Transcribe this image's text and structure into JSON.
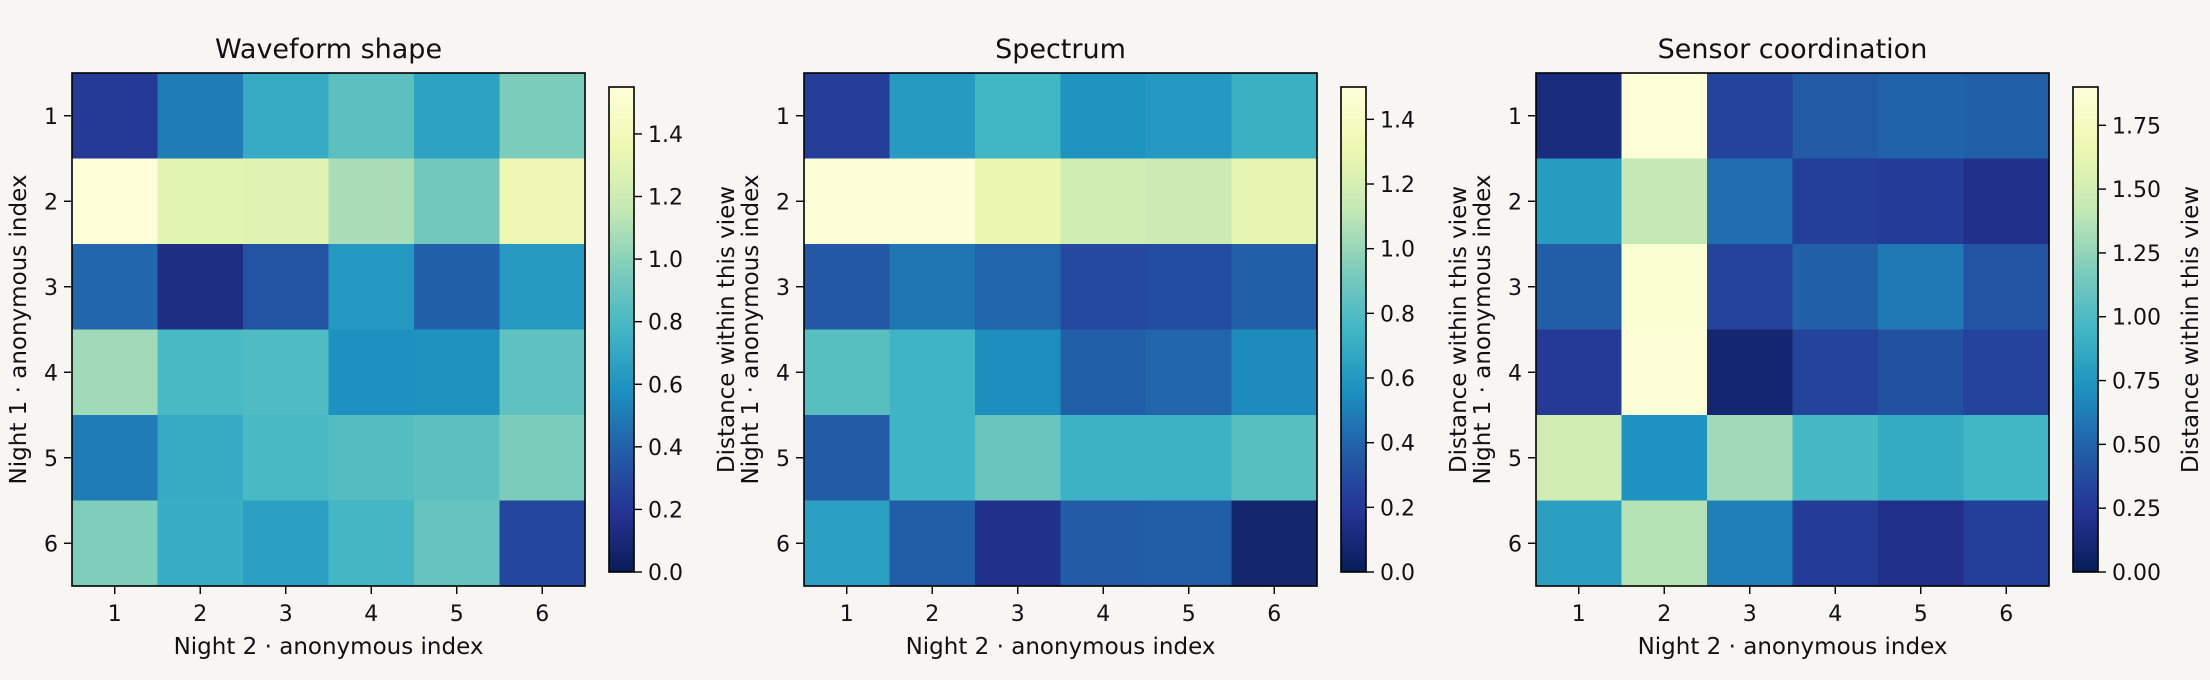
{
  "chart_data": [
    {
      "type": "heatmap",
      "title": "Waveform shape",
      "xlabel": "Night 2 · anonymous index",
      "ylabel": "Night 1 · anonymous index",
      "x_categories": [
        "1",
        "2",
        "3",
        "4",
        "5",
        "6"
      ],
      "y_categories": [
        "1",
        "2",
        "3",
        "4",
        "5",
        "6"
      ],
      "values": [
        [
          0.22,
          0.5,
          0.72,
          0.86,
          0.67,
          0.96
        ],
        [
          1.55,
          1.3,
          1.29,
          1.08,
          0.93,
          1.37
        ],
        [
          0.42,
          0.14,
          0.34,
          0.62,
          0.4,
          0.63
        ],
        [
          1.06,
          0.8,
          0.82,
          0.58,
          0.59,
          0.87
        ],
        [
          0.5,
          0.72,
          0.8,
          0.83,
          0.86,
          0.96
        ],
        [
          0.97,
          0.73,
          0.66,
          0.78,
          0.89,
          0.28
        ]
      ],
      "colorbar": {
        "label": "Distance within this view",
        "min": 0.0,
        "max": 1.55,
        "ticks": [
          "0.0",
          "0.2",
          "0.4",
          "0.6",
          "0.8",
          "1.0",
          "1.2",
          "1.4"
        ]
      }
    },
    {
      "type": "heatmap",
      "title": "Spectrum",
      "xlabel": "Night 2 · anonymous index",
      "ylabel": "Night 1 · anonymous index",
      "x_categories": [
        "1",
        "2",
        "3",
        "4",
        "5",
        "6"
      ],
      "y_categories": [
        "1",
        "2",
        "3",
        "4",
        "5",
        "6"
      ],
      "values": [
        [
          0.23,
          0.61,
          0.75,
          0.58,
          0.6,
          0.72
        ],
        [
          1.48,
          1.48,
          1.31,
          1.17,
          1.15,
          1.28
        ],
        [
          0.35,
          0.46,
          0.4,
          0.28,
          0.3,
          0.38
        ],
        [
          0.82,
          0.74,
          0.55,
          0.38,
          0.4,
          0.54
        ],
        [
          0.36,
          0.74,
          0.87,
          0.73,
          0.73,
          0.82
        ],
        [
          0.64,
          0.37,
          0.16,
          0.36,
          0.37,
          0.07
        ]
      ],
      "colorbar": {
        "label": "Distance within this view",
        "min": 0.0,
        "max": 1.5,
        "ticks": [
          "0.0",
          "0.2",
          "0.4",
          "0.6",
          "0.8",
          "1.0",
          "1.2",
          "1.4"
        ]
      }
    },
    {
      "type": "heatmap",
      "title": "Sensor coordination",
      "xlabel": "Night 2 · anonymous index",
      "ylabel": "Night 1 · anonymous index",
      "x_categories": [
        "1",
        "2",
        "3",
        "4",
        "5",
        "6"
      ],
      "y_categories": [
        "1",
        "2",
        "3",
        "4",
        "5",
        "6"
      ],
      "values": [
        [
          0.15,
          1.89,
          0.32,
          0.45,
          0.5,
          0.48
        ],
        [
          0.78,
          1.42,
          0.55,
          0.3,
          0.28,
          0.2
        ],
        [
          0.47,
          1.85,
          0.33,
          0.49,
          0.6,
          0.42
        ],
        [
          0.27,
          1.88,
          0.09,
          0.32,
          0.4,
          0.33
        ],
        [
          1.48,
          0.72,
          1.3,
          0.97,
          0.87,
          0.95
        ],
        [
          0.8,
          1.37,
          0.63,
          0.28,
          0.2,
          0.3
        ]
      ],
      "colorbar": {
        "label": "Distance within this view",
        "min": 0.0,
        "max": 1.9,
        "ticks": [
          "0.00",
          "0.25",
          "0.50",
          "0.75",
          "1.00",
          "1.25",
          "1.50",
          "1.75"
        ]
      }
    }
  ],
  "colormap": {
    "name": "YlGnBu",
    "stops": [
      "#081d58",
      "#253494",
      "#225ea8",
      "#1d91c0",
      "#41b6c4",
      "#7fcdbb",
      "#c7e9b4",
      "#edf8b1",
      "#ffffd9"
    ]
  }
}
